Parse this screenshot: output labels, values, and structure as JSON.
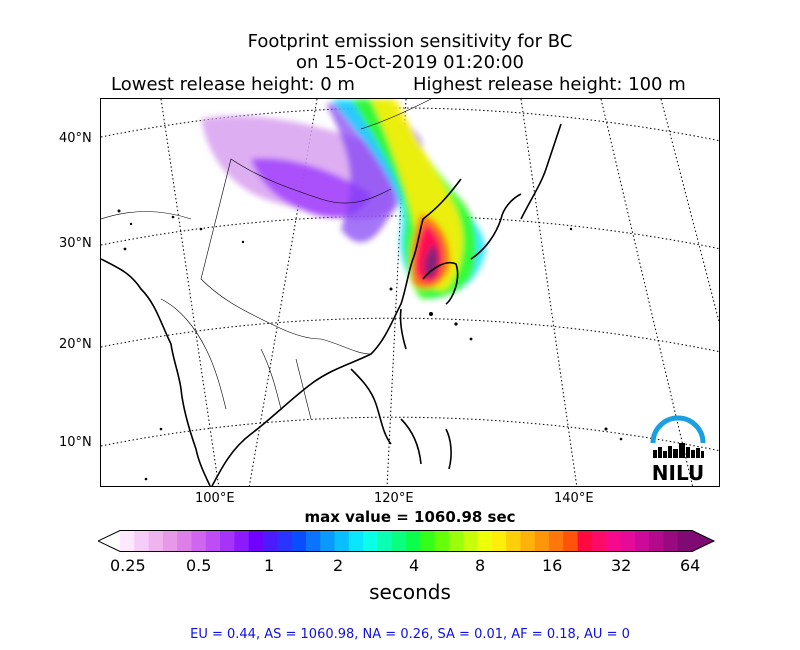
{
  "title": {
    "line1": "Footprint emission sensitivity for BC",
    "line2": "on 15-Oct-2019 01:20:00",
    "lowest": "Lowest release height: 0 m",
    "highest": "Highest release height: 100 m"
  },
  "axes": {
    "lat_labels": [
      "40°N",
      "30°N",
      "20°N",
      "10°N"
    ],
    "lon_labels": [
      "100°E",
      "120°E",
      "140°E"
    ]
  },
  "max_value_text": "max value = 1060.98 sec",
  "colorbar": {
    "ticks": [
      "0.25",
      "0.5",
      "1",
      "2",
      "4",
      "8",
      "16",
      "32",
      "64"
    ],
    "units": "seconds",
    "colors": [
      "#fde8fd",
      "#f6cdf6",
      "#efb3ef",
      "#e699e6",
      "#dc80e8",
      "#d066f0",
      "#bf4df5",
      "#a633f8",
      "#8c1afc",
      "#7000ff",
      "#4d1aff",
      "#2a33ff",
      "#0a4dff",
      "#0a73ff",
      "#0a99ff",
      "#0abfff",
      "#0ae6ff",
      "#0affe6",
      "#0affb3",
      "#0aff80",
      "#0aff4d",
      "#33ff1a",
      "#66ff0a",
      "#99ff0a",
      "#c7ff0a",
      "#eeff0a",
      "#ffee0a",
      "#ffd00a",
      "#ffb30a",
      "#ff950a",
      "#ff760a",
      "#ff520a",
      "#ff0a40",
      "#ff0a66",
      "#f50a8c",
      "#e60a99",
      "#cc0a99",
      "#b30a8c",
      "#990a80",
      "#800a73"
    ]
  },
  "footer": "EU = 0.44,  AS = 1060.98,  NA = 0.26,  SA = 0.01,  AF = 0.18,  AU = 0",
  "logo_text": "NILU"
}
